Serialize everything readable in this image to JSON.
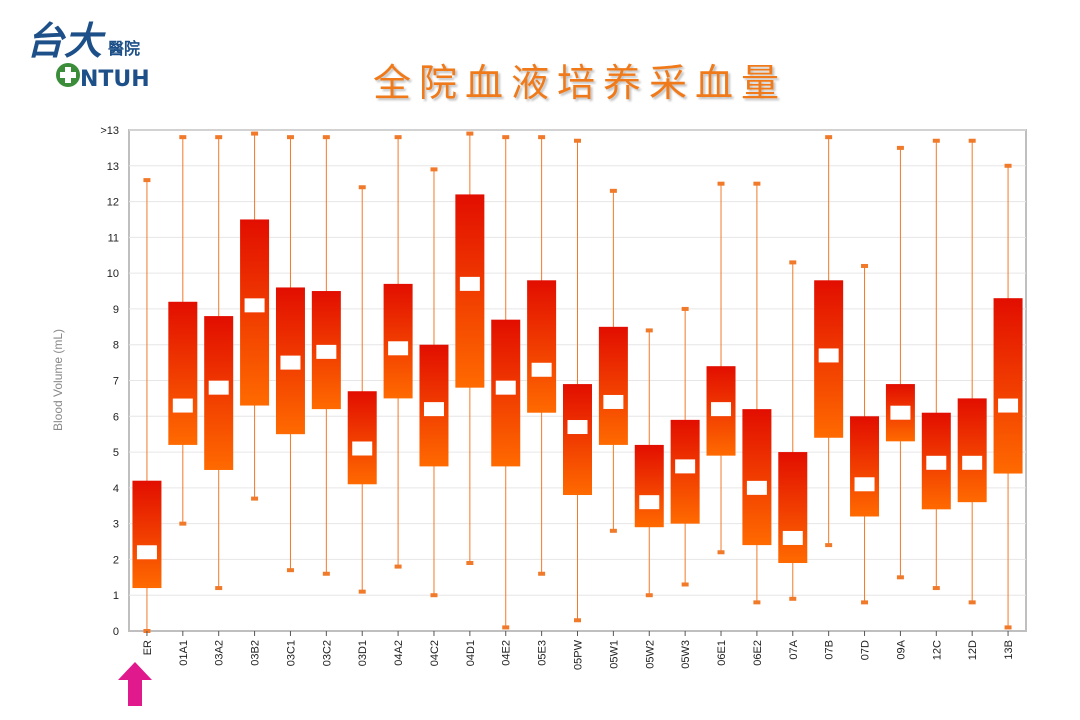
{
  "header": {
    "logo_cjk": "台大",
    "logo_hospital": "醫院",
    "logo_ntuh": "NTUH",
    "title": "全院血液培养采血量"
  },
  "colors": {
    "box_top": "#e20e00",
    "box_bottom": "#ff6a00",
    "whisker": "#f07a2a",
    "median": "#ffffff",
    "title": "#f07a1a",
    "arrow": "#e0198c",
    "logo_blue": "#1d4f88",
    "logo_green": "#3b8d3a"
  },
  "icons": {
    "pointer": "arrow-up-icon",
    "logo": "ntuh-logo-icon"
  },
  "chart_data": {
    "type": "box",
    "ylabel": "Blood Volume (mL)",
    "ylim": [
      0,
      14
    ],
    "yticks": [
      "0",
      "1",
      "2",
      "3",
      "4",
      "5",
      "6",
      "7",
      "8",
      "9",
      "10",
      "11",
      "12",
      "13",
      ">13"
    ],
    "grid": true,
    "categories": [
      "ER",
      "01A1",
      "03A2",
      "03B2",
      "03C1",
      "03C2",
      "03D1",
      "04A2",
      "04C2",
      "04D1",
      "04E2",
      "05E3",
      "05PW",
      "05W1",
      "05W2",
      "05W3",
      "06E1",
      "06E2",
      "07A",
      "07B",
      "07D",
      "09A",
      "12C",
      "12D",
      "13B"
    ],
    "min": [
      0.0,
      3.0,
      1.2,
      3.7,
      1.7,
      1.6,
      1.1,
      1.8,
      1.0,
      1.9,
      0.1,
      1.6,
      0.3,
      2.8,
      1.0,
      1.3,
      2.2,
      0.8,
      0.9,
      2.4,
      0.8,
      1.5,
      1.2,
      0.8,
      0.1
    ],
    "q1": [
      1.2,
      5.2,
      4.5,
      6.3,
      5.5,
      6.2,
      4.1,
      6.5,
      4.6,
      6.8,
      4.6,
      6.1,
      3.8,
      5.2,
      2.9,
      3.0,
      4.9,
      2.4,
      1.9,
      5.4,
      3.2,
      5.3,
      3.4,
      3.6,
      4.4
    ],
    "median": [
      2.2,
      6.3,
      6.8,
      9.1,
      7.5,
      7.8,
      5.1,
      7.9,
      6.2,
      9.7,
      6.8,
      7.3,
      5.7,
      6.4,
      3.6,
      4.6,
      6.2,
      4.0,
      2.6,
      7.7,
      4.1,
      6.1,
      4.7,
      4.7,
      6.3
    ],
    "q3": [
      4.2,
      9.2,
      8.8,
      11.5,
      9.6,
      9.5,
      6.7,
      9.7,
      8.0,
      12.2,
      8.7,
      9.8,
      6.9,
      8.5,
      5.2,
      5.9,
      7.4,
      6.2,
      5.0,
      9.8,
      6.0,
      6.9,
      6.1,
      6.5,
      9.3
    ],
    "max": [
      12.6,
      13.8,
      13.8,
      13.9,
      13.8,
      13.8,
      12.4,
      13.8,
      12.9,
      13.9,
      13.8,
      13.8,
      13.7,
      12.3,
      8.4,
      9.0,
      12.5,
      12.5,
      10.3,
      13.8,
      10.2,
      13.5,
      13.7,
      13.7,
      13.0
    ]
  }
}
